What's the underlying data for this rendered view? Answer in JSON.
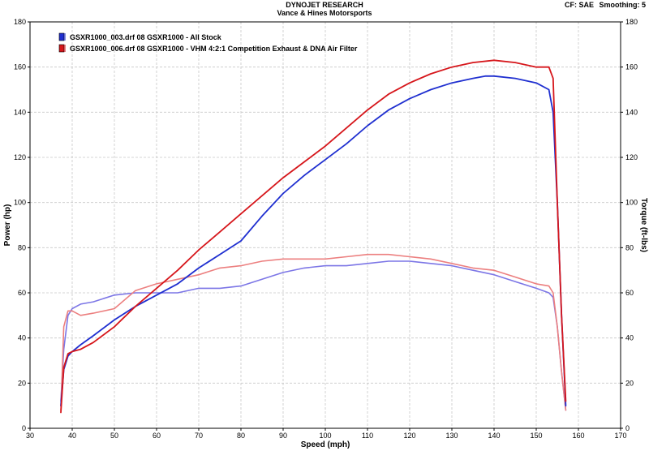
{
  "header": {
    "title": "DYNOJET RESEARCH",
    "subtitle": "Vance & Hines Motorsports",
    "cf": "CF: SAE",
    "smoothing": "Smoothing: 5"
  },
  "colors": {
    "blue": "#1f2fd0",
    "red": "#d6161b",
    "blue_torque": "#7c76e6",
    "red_torque": "#ec7f7f",
    "grid": "#c8c8c8"
  },
  "chart_data": {
    "type": "line",
    "xlabel": "Speed (mph)",
    "ylabel": "Power (hp)",
    "y2label": "Torque (ft-lbs)",
    "xlim": [
      30,
      170
    ],
    "ylim": [
      0,
      180
    ],
    "y2lim": [
      0,
      180
    ],
    "xticks": [
      30,
      40,
      50,
      60,
      70,
      80,
      90,
      100,
      110,
      120,
      130,
      140,
      150,
      160,
      170
    ],
    "yticks": [
      0,
      20,
      40,
      60,
      80,
      100,
      120,
      140,
      160,
      180
    ],
    "grid": true,
    "legend_position": "top-left",
    "series": [
      {
        "name": "GSXR1000_003.drf 08 GSXR1000 - All Stock",
        "kind": "power",
        "color": "#1f2fd0",
        "x": [
          37.3,
          38,
          39,
          40,
          42,
          45,
          50,
          55,
          60,
          65,
          70,
          75,
          80,
          85,
          90,
          95,
          100,
          105,
          110,
          115,
          120,
          125,
          130,
          135,
          138,
          140,
          145,
          150,
          153,
          154,
          155,
          156,
          157
        ],
        "y": [
          10,
          26,
          32,
          34,
          37,
          41,
          48,
          54,
          59,
          64,
          71,
          77,
          83,
          94,
          104,
          112,
          119,
          126,
          134,
          141,
          146,
          150,
          153,
          155,
          156,
          156,
          155,
          153,
          150,
          140,
          100,
          50,
          10
        ]
      },
      {
        "name": "GSXR1000_006.drf 08 GSXR1000 - VHM 4:2:1 Competition Exhaust & DNA Air Filter",
        "kind": "power",
        "color": "#d6161b",
        "x": [
          37.3,
          38,
          39,
          40,
          42,
          45,
          50,
          55,
          60,
          65,
          70,
          75,
          80,
          85,
          90,
          95,
          100,
          105,
          110,
          115,
          120,
          125,
          130,
          135,
          140,
          145,
          150,
          153,
          154,
          155,
          156,
          157
        ],
        "y": [
          7,
          27,
          33,
          34,
          35,
          38,
          45,
          54,
          62,
          70,
          79,
          87,
          95,
          103,
          111,
          118,
          125,
          133,
          141,
          148,
          153,
          157,
          160,
          162,
          163,
          162,
          160,
          160,
          155,
          100,
          50,
          12
        ]
      },
      {
        "name": "",
        "kind": "torque",
        "color": "#7c76e6",
        "x": [
          37.3,
          38,
          39,
          40,
          42,
          45,
          50,
          55,
          60,
          65,
          70,
          75,
          80,
          85,
          90,
          95,
          100,
          105,
          110,
          115,
          120,
          125,
          130,
          135,
          140,
          145,
          150,
          153,
          154,
          155,
          156,
          157
        ],
        "y": [
          12,
          35,
          50,
          53,
          55,
          56,
          59,
          60,
          60,
          60,
          62,
          62,
          63,
          66,
          69,
          71,
          72,
          72,
          73,
          74,
          74,
          73,
          72,
          70,
          68,
          65,
          62,
          60,
          58,
          45,
          25,
          8
        ]
      },
      {
        "name": "",
        "kind": "torque",
        "color": "#ec7f7f",
        "x": [
          37.3,
          38,
          39,
          40,
          42,
          45,
          50,
          55,
          60,
          65,
          70,
          75,
          80,
          85,
          90,
          95,
          100,
          105,
          110,
          115,
          120,
          125,
          130,
          135,
          140,
          145,
          150,
          153,
          154,
          155,
          156,
          157
        ],
        "y": [
          8,
          45,
          52,
          52,
          50,
          51,
          53,
          61,
          64,
          66,
          68,
          71,
          72,
          74,
          75,
          75,
          75,
          76,
          77,
          77,
          76,
          75,
          73,
          71,
          70,
          67,
          64,
          63,
          60,
          45,
          25,
          8
        ]
      }
    ]
  }
}
